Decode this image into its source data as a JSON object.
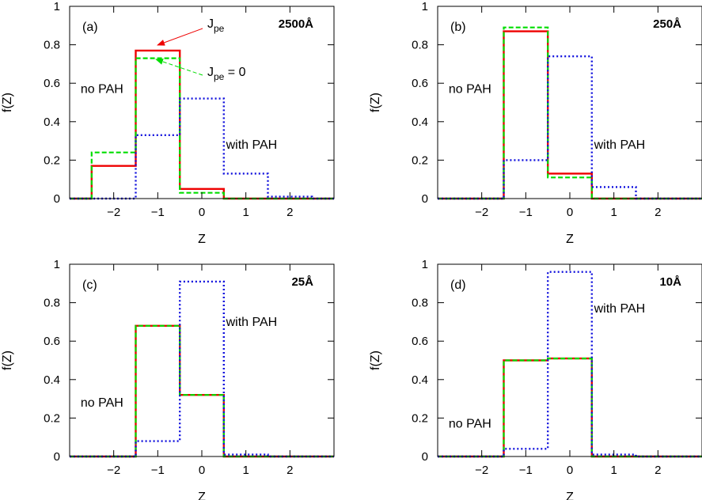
{
  "chart_data": [
    {
      "type": "line",
      "panel": "(a)",
      "size_label": "2500Å",
      "xlabel": "Z",
      "ylabel": "f(Z)",
      "xlim": [
        -3,
        3
      ],
      "ylim": [
        0,
        1
      ],
      "xticks": [
        -2,
        -1,
        0,
        1,
        2
      ],
      "yticks": [
        0,
        0.2,
        0.4,
        0.6,
        0.8,
        1
      ],
      "ytick_labels": [
        "0",
        "0.2",
        "0.4",
        "0.6",
        "0.8",
        "1"
      ],
      "x": [
        -2,
        -1,
        0,
        1,
        2
      ],
      "series": [
        {
          "name": "Jpe",
          "values": [
            0.17,
            0.77,
            0.05,
            0,
            0
          ]
        },
        {
          "name": "Jpe = 0",
          "values": [
            0.24,
            0.73,
            0.03,
            0,
            0
          ]
        },
        {
          "values": [
            0,
            0.33,
            0.52,
            0.13,
            0.01
          ]
        }
      ],
      "annotations": [
        {
          "text": "no PAH",
          "x": -2.75,
          "y": 0.57
        },
        {
          "text": "with PAH",
          "x": 0.55,
          "y": 0.28
        }
      ],
      "legend_labels": [
        {
          "main": "J",
          "sub": "pe",
          "tail": ""
        },
        {
          "main": "J",
          "sub": "pe",
          "tail": " = 0"
        }
      ]
    },
    {
      "type": "line",
      "panel": "(b)",
      "size_label": "250Å",
      "xlabel": "Z",
      "ylabel": "f(Z)",
      "xlim": [
        -3,
        3
      ],
      "ylim": [
        0,
        1
      ],
      "xticks": [
        -2,
        -1,
        0,
        1,
        2
      ],
      "yticks": [
        0,
        0.2,
        0.4,
        0.6,
        0.8,
        1
      ],
      "ytick_labels": [
        "0",
        "0.2",
        "0.4",
        "0.6",
        "0.8",
        "1"
      ],
      "x": [
        -2,
        -1,
        0,
        1,
        2
      ],
      "series": [
        {
          "values": [
            0,
            0.87,
            0.13,
            0,
            0
          ]
        },
        {
          "values": [
            0,
            0.89,
            0.11,
            0,
            0
          ]
        },
        {
          "values": [
            0,
            0.2,
            0.74,
            0.06,
            0
          ]
        }
      ],
      "annotations": [
        {
          "text": "no PAH",
          "x": -2.75,
          "y": 0.57
        },
        {
          "text": "with PAH",
          "x": 0.55,
          "y": 0.28
        }
      ]
    },
    {
      "type": "line",
      "panel": "(c)",
      "size_label": "25Å",
      "xlabel": "Z",
      "ylabel": "f(Z)",
      "xlim": [
        -3,
        3
      ],
      "ylim": [
        0,
        1
      ],
      "xticks": [
        -2,
        -1,
        0,
        1,
        2
      ],
      "yticks": [
        0,
        0.2,
        0.4,
        0.6,
        0.8,
        1
      ],
      "ytick_labels": [
        "0",
        "0.2",
        "0.4",
        "0.6",
        "0.8",
        "1"
      ],
      "x": [
        -2,
        -1,
        0,
        1,
        2
      ],
      "series": [
        {
          "values": [
            0,
            0.68,
            0.32,
            0,
            0
          ]
        },
        {
          "values": [
            0,
            0.68,
            0.32,
            0,
            0
          ]
        },
        {
          "values": [
            0,
            0.08,
            0.91,
            0.01,
            0
          ]
        }
      ],
      "annotations": [
        {
          "text": "no PAH",
          "x": -2.75,
          "y": 0.28
        },
        {
          "text": "with PAH",
          "x": 0.55,
          "y": 0.7
        }
      ]
    },
    {
      "type": "line",
      "panel": "(d)",
      "size_label": "10Å",
      "xlabel": "Z",
      "ylabel": "f(Z)",
      "xlim": [
        -3,
        3
      ],
      "ylim": [
        0,
        1
      ],
      "xticks": [
        -2,
        -1,
        0,
        1,
        2
      ],
      "yticks": [
        0,
        0.2,
        0.4,
        0.6,
        0.8,
        1
      ],
      "ytick_labels": [
        "0",
        "0.2",
        "0.4",
        "0.6",
        "0.8",
        "1"
      ],
      "x": [
        -2,
        -1,
        0,
        1,
        2
      ],
      "series": [
        {
          "values": [
            0,
            0.5,
            0.51,
            0,
            0
          ]
        },
        {
          "values": [
            0,
            0.5,
            0.51,
            0,
            0
          ]
        },
        {
          "values": [
            0,
            0.04,
            0.96,
            0.01,
            0
          ]
        }
      ],
      "annotations": [
        {
          "text": "no PAH",
          "x": -2.75,
          "y": 0.17
        },
        {
          "text": "with PAH",
          "x": 0.55,
          "y": 0.77
        }
      ]
    }
  ],
  "colors": {
    "red": "#ee0000",
    "green": "#00dd00",
    "blue": "#1010dd",
    "axis": "#000000"
  }
}
